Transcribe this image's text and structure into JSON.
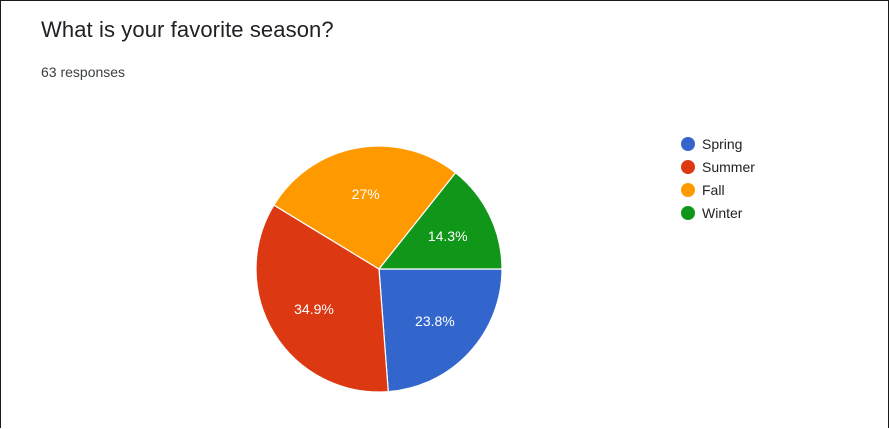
{
  "header": {
    "title": "What is your favorite season?",
    "responses": "63 responses"
  },
  "colors": {
    "spring": "#3366cc",
    "summer": "#dc3912",
    "fall": "#ff9900",
    "winter": "#109618"
  },
  "legend": {
    "items": [
      {
        "label": "Spring",
        "color": "#3366cc"
      },
      {
        "label": "Summer",
        "color": "#dc3912"
      },
      {
        "label": "Fall",
        "color": "#ff9900"
      },
      {
        "label": "Winter",
        "color": "#109618"
      }
    ]
  },
  "chart_data": {
    "type": "pie",
    "title": "What is your favorite season?",
    "subtitle": "63 responses",
    "categories": [
      "Spring",
      "Summer",
      "Fall",
      "Winter"
    ],
    "values": [
      23.8,
      34.9,
      27,
      14.3
    ],
    "labels": [
      "23.8%",
      "34.9%",
      "27%",
      "14.3%"
    ],
    "colors": [
      "#3366cc",
      "#dc3912",
      "#ff9900",
      "#109618"
    ],
    "start": "3 o'clock",
    "direction": "clockwise",
    "legend": "right"
  }
}
